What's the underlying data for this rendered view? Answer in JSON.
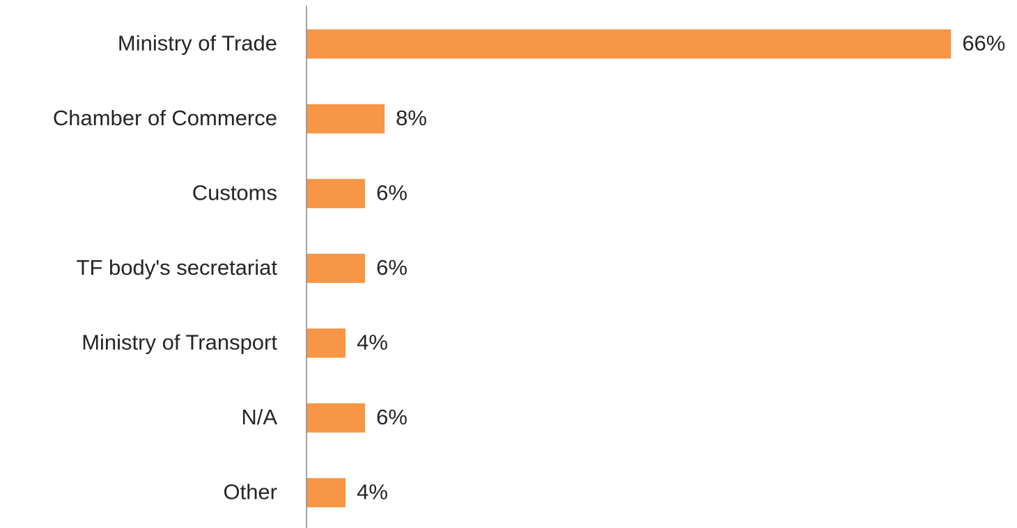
{
  "chart_data": {
    "type": "bar",
    "orientation": "horizontal",
    "categories": [
      "Ministry of Trade",
      "Chamber of Commerce",
      "Customs",
      "TF body's secretariat",
      "Ministry of Transport",
      "N/A",
      "Other"
    ],
    "values": [
      66,
      8,
      6,
      6,
      4,
      6,
      4
    ],
    "value_labels": [
      "66%",
      "8%",
      "6%",
      "6%",
      "4%",
      "6%",
      "4%"
    ],
    "color": "#f79646"
  }
}
